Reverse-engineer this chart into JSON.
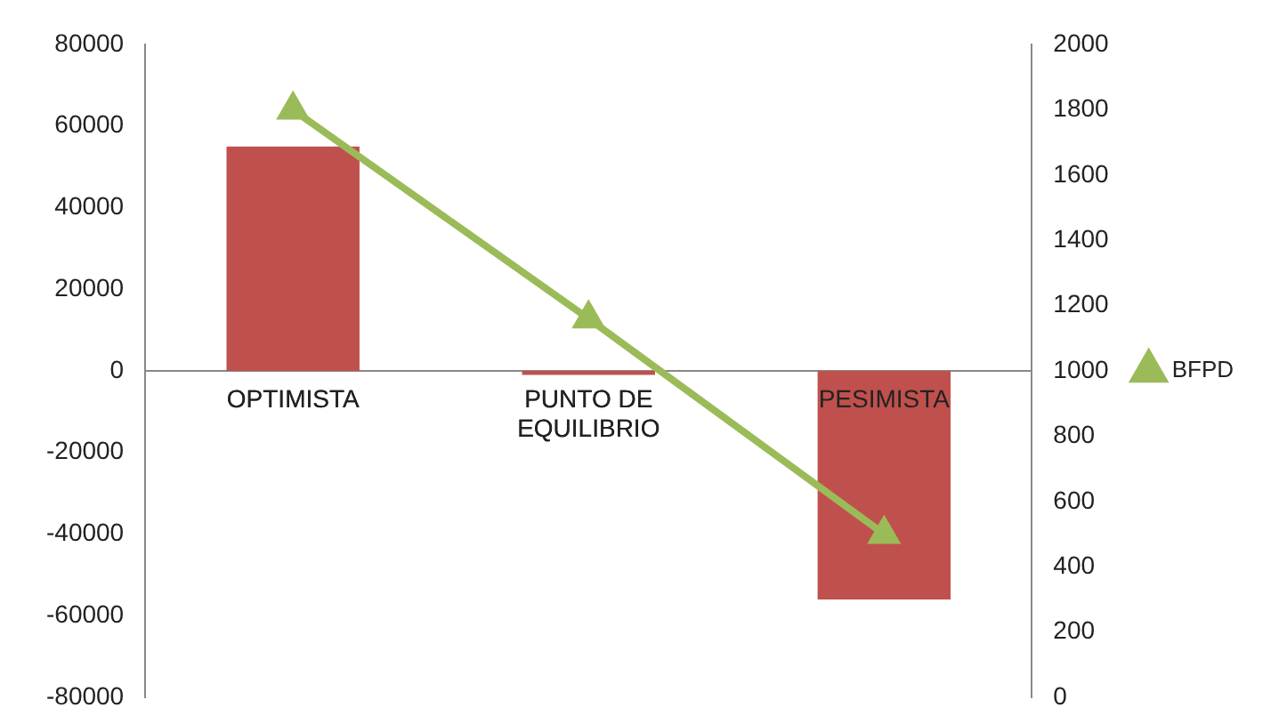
{
  "chart_data": {
    "type": "bar",
    "categories": [
      "OPTIMISTA",
      "PUNTO DE EQUILIBRIO",
      "PESIMISTA"
    ],
    "series": [
      {
        "color": "#c0504d",
        "values": [
          55000,
          -1000,
          -56000
        ]
      },
      {
        "type": "line",
        "name": "BFPD",
        "color": "#9bbb59",
        "axis": "y2",
        "values": [
          1800,
          1160,
          500
        ]
      }
    ],
    "ylim": [
      -80000,
      80000
    ],
    "yticks": [
      -80000,
      -60000,
      -40000,
      -20000,
      0,
      20000,
      40000,
      60000,
      80000
    ],
    "y2lim": [
      0,
      2000
    ],
    "y2ticks": [
      0,
      200,
      400,
      600,
      800,
      1000,
      1200,
      1400,
      1600,
      1800,
      2000
    ],
    "legend": "right",
    "marker": "triangle",
    "grid": false
  }
}
